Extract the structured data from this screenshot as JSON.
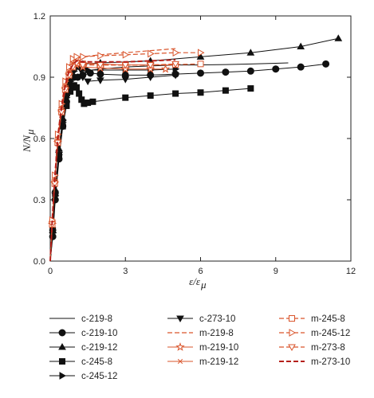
{
  "chart_data": {
    "type": "line",
    "xlabel": "ε/ε",
    "xlabel_sub": "μ",
    "ylabel": "N/N",
    "ylabel_sub": "μ",
    "xlim": [
      0,
      12
    ],
    "ylim": [
      0,
      1.2
    ],
    "xticks": [
      "0",
      "3",
      "6",
      "9",
      "12"
    ],
    "yticks": [
      "0.0",
      "0.3",
      "0.6",
      "0.9",
      "1.2"
    ],
    "grid": false,
    "legend_position": "bottom",
    "series": [
      {
        "name": "c-219-8",
        "color": "#111111",
        "line": "solid",
        "marker": "none",
        "x": [
          0,
          0.1,
          0.2,
          0.35,
          0.5,
          0.65,
          0.8,
          0.95,
          1.1,
          1.3,
          2,
          3,
          4,
          5,
          6,
          7,
          8,
          9,
          9.5
        ],
        "y": [
          0,
          0.15,
          0.35,
          0.55,
          0.7,
          0.82,
          0.9,
          0.94,
          0.95,
          0.93,
          0.94,
          0.95,
          0.955,
          0.96,
          0.96,
          0.962,
          0.965,
          0.968,
          0.97
        ]
      },
      {
        "name": "c-219-10",
        "color": "#111111",
        "line": "solid",
        "marker": "circle",
        "x": [
          0,
          0.1,
          0.2,
          0.35,
          0.5,
          0.65,
          0.8,
          0.95,
          1.1,
          1.3,
          1.6,
          2,
          3,
          4,
          5,
          6,
          7,
          8,
          9,
          10,
          11
        ],
        "y": [
          0,
          0.12,
          0.3,
          0.5,
          0.66,
          0.78,
          0.86,
          0.9,
          0.9,
          0.91,
          0.92,
          0.915,
          0.91,
          0.91,
          0.915,
          0.92,
          0.925,
          0.93,
          0.94,
          0.95,
          0.965
        ]
      },
      {
        "name": "c-219-12",
        "color": "#111111",
        "line": "solid",
        "marker": "triangle-up",
        "x": [
          0,
          0.1,
          0.2,
          0.35,
          0.5,
          0.65,
          0.8,
          1,
          1.3,
          2,
          4,
          6,
          8,
          10,
          11.5
        ],
        "y": [
          0,
          0.15,
          0.35,
          0.55,
          0.7,
          0.82,
          0.9,
          0.95,
          0.965,
          0.97,
          0.98,
          1.0,
          1.02,
          1.05,
          1.09
        ]
      },
      {
        "name": "c-245-8",
        "color": "#111111",
        "line": "solid",
        "marker": "square",
        "x": [
          0,
          0.1,
          0.2,
          0.35,
          0.5,
          0.65,
          0.8,
          0.95,
          1.05,
          1.15,
          1.25,
          1.35,
          1.5,
          1.7,
          3,
          4,
          5,
          6,
          7,
          8
        ],
        "y": [
          0,
          0.15,
          0.33,
          0.52,
          0.66,
          0.76,
          0.83,
          0.86,
          0.85,
          0.82,
          0.79,
          0.77,
          0.775,
          0.78,
          0.8,
          0.81,
          0.82,
          0.825,
          0.835,
          0.845
        ]
      },
      {
        "name": "c-245-12",
        "color": "#111111",
        "line": "solid",
        "marker": "triangle-right",
        "x": [
          0,
          0.1,
          0.2,
          0.35,
          0.5,
          0.65,
          0.8,
          0.95,
          1.1,
          1.3,
          1.5,
          2,
          3,
          4,
          5
        ],
        "y": [
          0,
          0.14,
          0.32,
          0.52,
          0.68,
          0.8,
          0.88,
          0.93,
          0.95,
          0.94,
          0.935,
          0.935,
          0.935,
          0.935,
          0.94
        ]
      },
      {
        "name": "c-273-10",
        "color": "#111111",
        "line": "solid",
        "marker": "triangle-down",
        "x": [
          0,
          0.1,
          0.2,
          0.35,
          0.5,
          0.65,
          0.8,
          0.95,
          1.1,
          1.2,
          1.3,
          1.5,
          2,
          3,
          4,
          5
        ],
        "y": [
          0,
          0.14,
          0.32,
          0.52,
          0.68,
          0.8,
          0.88,
          0.93,
          0.96,
          0.94,
          0.9,
          0.88,
          0.885,
          0.89,
          0.9,
          0.91
        ]
      },
      {
        "name": "m-219-8",
        "color": "#d9542b",
        "line": "dashed",
        "marker": "none",
        "x": [
          0,
          0.08,
          0.18,
          0.3,
          0.45,
          0.6,
          0.75,
          0.9,
          1.05,
          1.3,
          2,
          3,
          4,
          5
        ],
        "y": [
          0,
          0.2,
          0.4,
          0.6,
          0.75,
          0.86,
          0.93,
          0.97,
          0.99,
          1.0,
          1.01,
          1.02,
          1.03,
          1.04
        ]
      },
      {
        "name": "m-219-10",
        "color": "#d9542b",
        "line": "solid",
        "marker": "star",
        "x": [
          0,
          0.08,
          0.18,
          0.3,
          0.45,
          0.6,
          0.75,
          0.9,
          1.05,
          1.3,
          2,
          3,
          4,
          4.6
        ],
        "y": [
          0,
          0.18,
          0.38,
          0.58,
          0.73,
          0.84,
          0.91,
          0.95,
          0.96,
          0.95,
          0.945,
          0.94,
          0.94,
          0.94
        ]
      },
      {
        "name": "m-219-12",
        "color": "#d9542b",
        "line": "solid",
        "marker": "asterisk",
        "x": [
          0,
          0.08,
          0.18,
          0.3,
          0.45,
          0.6,
          0.75,
          0.9,
          1.05,
          1.3,
          2,
          3,
          4,
          5
        ],
        "y": [
          0,
          0.2,
          0.4,
          0.6,
          0.75,
          0.86,
          0.93,
          0.97,
          0.98,
          0.97,
          0.965,
          0.96,
          0.96,
          0.96
        ]
      },
      {
        "name": "m-245-8",
        "color": "#d9542b",
        "line": "dashed",
        "marker": "square-open",
        "x": [
          0,
          0.08,
          0.18,
          0.3,
          0.45,
          0.6,
          0.75,
          0.9,
          1.05,
          1.3,
          2,
          3,
          4,
          5,
          6
        ],
        "y": [
          0,
          0.18,
          0.38,
          0.58,
          0.73,
          0.84,
          0.91,
          0.95,
          0.97,
          0.965,
          0.96,
          0.96,
          0.96,
          0.962,
          0.965
        ]
      },
      {
        "name": "m-245-12",
        "color": "#d9542b",
        "line": "dashed",
        "marker": "triangle-right-open",
        "x": [
          0,
          0.08,
          0.18,
          0.3,
          0.45,
          0.6,
          0.75,
          0.9,
          1.05,
          1.3,
          2,
          3,
          4,
          5,
          6
        ],
        "y": [
          0,
          0.2,
          0.42,
          0.62,
          0.77,
          0.88,
          0.95,
          0.99,
          1.0,
          1.0,
          1.005,
          1.01,
          1.015,
          1.02,
          1.02
        ]
      },
      {
        "name": "m-273-8",
        "color": "#d9542b",
        "line": "dashed",
        "marker": "triangle-down-open",
        "x": [
          0,
          0.08,
          0.18,
          0.3,
          0.45,
          0.6,
          0.75,
          0.9,
          1.05,
          1.3,
          2,
          3,
          4,
          5
        ],
        "y": [
          0,
          0.18,
          0.38,
          0.58,
          0.73,
          0.84,
          0.91,
          0.95,
          0.97,
          0.96,
          0.96,
          0.96,
          0.96,
          0.965
        ]
      },
      {
        "name": "m-273-10",
        "color": "#b51f1a",
        "line": "dashed-bold",
        "marker": "none",
        "x": [
          0,
          0.08,
          0.18,
          0.3,
          0.45,
          0.6,
          0.75,
          0.9,
          1.05,
          1.3,
          2,
          3,
          4,
          5
        ],
        "y": [
          0,
          0.2,
          0.4,
          0.6,
          0.75,
          0.86,
          0.93,
          0.96,
          0.98,
          0.975,
          0.975,
          0.975,
          0.98,
          0.985
        ]
      }
    ]
  }
}
